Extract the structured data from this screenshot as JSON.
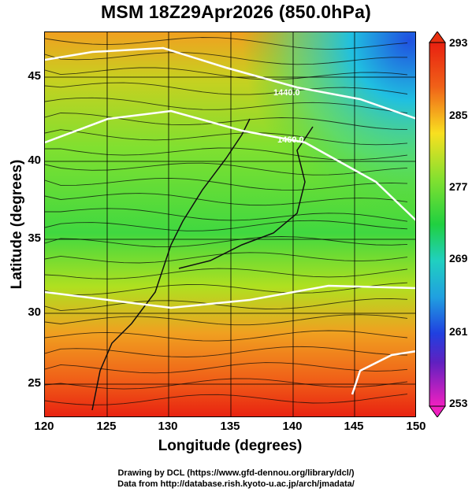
{
  "title": "MSM 18Z29Apr2026 (850.0hPa)",
  "x_axis": {
    "label": "Longitude (degrees)",
    "ticks": [
      "120",
      "125",
      "130",
      "135",
      "140",
      "145",
      "150"
    ],
    "range": [
      120,
      150
    ]
  },
  "y_axis": {
    "label": "Latitude  (degrees)",
    "ticks": [
      "25",
      "30",
      "35",
      "40",
      "45"
    ],
    "range": [
      22.5,
      47.6
    ]
  },
  "colorbar": {
    "ticks": [
      "293",
      "285",
      "277",
      "269",
      "261",
      "253"
    ],
    "range": [
      253,
      293
    ]
  },
  "contour_labels": [
    "1440.0",
    "1460.0"
  ],
  "credits": {
    "line1": "Drawing by DCL (https://www.gfd-dennou.org/library/dcl/)",
    "line2": "Data from http://database.rish.kyoto-u.ac.jp/arch/jmadata/"
  },
  "colors": {
    "hot": "#e83010",
    "warm": "#f4a020",
    "mid": "#40d040",
    "cool": "#20d0d0",
    "cold": "#2050e0"
  }
}
